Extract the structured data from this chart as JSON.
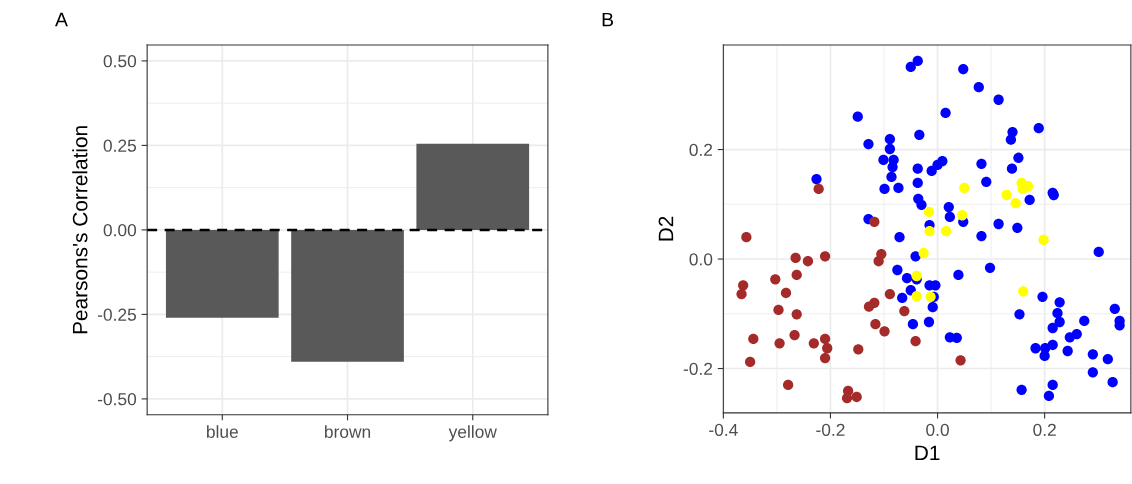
{
  "chart_data": [
    {
      "type": "bar",
      "title": "A",
      "ylabel": "Pearsons's Correlation",
      "categories": [
        "blue",
        "brown",
        "yellow"
      ],
      "values": [
        -0.26,
        -0.39,
        0.255
      ],
      "color": "#595959",
      "ylim": [
        -0.547,
        0.547
      ],
      "yticks": [
        {
          "value": -0.5,
          "label": "-0.50"
        },
        {
          "value": -0.25,
          "label": "-0.25"
        },
        {
          "value": 0,
          "label": "0.00"
        },
        {
          "value": 0.25,
          "label": "0.25"
        },
        {
          "value": 0.5,
          "label": "0.50"
        }
      ],
      "grid": true,
      "ref_lines": [
        {
          "axis": "y",
          "value": 0,
          "color": "#000000",
          "line_style": "dashed"
        }
      ]
    },
    {
      "type": "scatter",
      "title": "B",
      "xlabel": "D1",
      "ylabel": "D2",
      "xlim": [
        -0.4,
        0.361
      ],
      "ylim": [
        -0.281,
        0.391
      ],
      "xticks": [
        {
          "value": -0.4,
          "label": "-0.4"
        },
        {
          "value": -0.2,
          "label": "-0.2"
        },
        {
          "value": 0,
          "label": "0.0"
        },
        {
          "value": 0.2,
          "label": "0.2"
        }
      ],
      "yticks": [
        {
          "value": -0.2,
          "label": "-0.2"
        },
        {
          "value": 0,
          "label": "0.0"
        },
        {
          "value": 0.2,
          "label": "0.2"
        }
      ],
      "grid": true,
      "marker": "circle",
      "series": [
        {
          "color": "#0000ff",
          "x": [
            -0.037,
            -0.05,
            0.048,
            0.077,
            0.114,
            0.015,
            -0.034,
            0.189,
            0.14,
            0.137,
            0.151,
            0.139,
            0.082,
            0.091,
            0.009,
            0.0,
            -0.011,
            -0.037,
            -0.037,
            -0.036,
            -0.03,
            0.021,
            0.023,
            0.048,
            -0.015,
            0.114,
            0.149,
            0.172,
            0.215,
            0.217,
            -0.149,
            -0.129,
            -0.089,
            -0.089,
            -0.101,
            -0.082,
            -0.084,
            -0.086,
            -0.099,
            -0.073,
            -0.226,
            -0.129,
            -0.071,
            -0.075,
            -0.057,
            -0.05,
            -0.066,
            -0.046,
            -0.041,
            0.082,
            0.301,
            0.098,
            0.039,
            -0.015,
            -0.004,
            -0.039,
            -0.007,
            -0.009,
            -0.016,
            0.023,
            0.036,
            0.153,
            0.196,
            0.228,
            0.224,
            0.228,
            0.215,
            0.274,
            0.331,
            0.34,
            0.34,
            0.26,
            0.247,
            0.215,
            0.201,
            0.183,
            0.2,
            0.243,
            0.29,
            0.318,
            0.29,
            0.327,
            0.157,
            0.215,
            0.208
          ],
          "values": [
            0.362,
            0.351,
            0.347,
            0.314,
            0.291,
            0.267,
            0.227,
            0.239,
            0.232,
            0.218,
            0.185,
            0.165,
            0.174,
            0.141,
            0.179,
            0.172,
            0.161,
            0.165,
            0.139,
            0.11,
            0.099,
            0.095,
            0.077,
            0.068,
            0.062,
            0.064,
            0.057,
            0.108,
            0.121,
            0.117,
            0.26,
            0.21,
            0.219,
            0.201,
            0.181,
            0.181,
            0.168,
            0.15,
            0.128,
            0.13,
            0.146,
            0.073,
            0.04,
            -0.02,
            -0.035,
            -0.057,
            -0.071,
            -0.119,
            0.005,
            0.042,
            0.013,
            -0.016,
            -0.029,
            -0.048,
            -0.048,
            -0.037,
            -0.069,
            -0.088,
            -0.115,
            -0.143,
            -0.144,
            -0.101,
            -0.069,
            -0.079,
            -0.099,
            -0.115,
            -0.126,
            -0.113,
            -0.091,
            -0.113,
            -0.121,
            -0.137,
            -0.143,
            -0.157,
            -0.163,
            -0.163,
            -0.177,
            -0.168,
            -0.174,
            -0.183,
            -0.207,
            -0.225,
            -0.239,
            -0.23,
            -0.25
          ]
        },
        {
          "color": "#a52a2a",
          "x": [
            -0.222,
            -0.118,
            -0.357,
            -0.265,
            -0.242,
            -0.21,
            -0.11,
            -0.105,
            -0.303,
            -0.263,
            -0.363,
            -0.366,
            -0.283,
            -0.089,
            -0.297,
            -0.263,
            -0.128,
            -0.118,
            -0.062,
            -0.116,
            -0.099,
            -0.267,
            -0.344,
            -0.295,
            -0.231,
            -0.21,
            -0.206,
            -0.21,
            -0.148,
            -0.35,
            -0.279,
            -0.167,
            -0.169,
            -0.151,
            -0.041,
            0.043
          ],
          "values": [
            0.128,
            0.068,
            0.04,
            0.002,
            -0.004,
            0.005,
            -0.004,
            0.009,
            -0.037,
            -0.029,
            -0.048,
            -0.064,
            -0.062,
            -0.064,
            -0.093,
            -0.101,
            -0.087,
            -0.08,
            -0.095,
            -0.119,
            -0.132,
            -0.139,
            -0.146,
            -0.154,
            -0.154,
            -0.146,
            -0.163,
            -0.181,
            -0.165,
            -0.188,
            -0.23,
            -0.241,
            -0.254,
            -0.252,
            -0.15,
            -0.185
          ]
        },
        {
          "color": "#ffff00",
          "x": [
            0.05,
            -0.016,
            0.046,
            0.016,
            0.129,
            0.146,
            0.157,
            0.169,
            0.159,
            -0.015,
            0.198,
            -0.026,
            -0.039,
            -0.039,
            0.16,
            -0.013
          ],
          "values": [
            0.13,
            0.086,
            0.08,
            0.051,
            0.117,
            0.102,
            0.139,
            0.133,
            0.128,
            0.051,
            0.035,
            0.011,
            -0.031,
            -0.068,
            -0.059,
            -0.069
          ]
        }
      ]
    }
  ]
}
